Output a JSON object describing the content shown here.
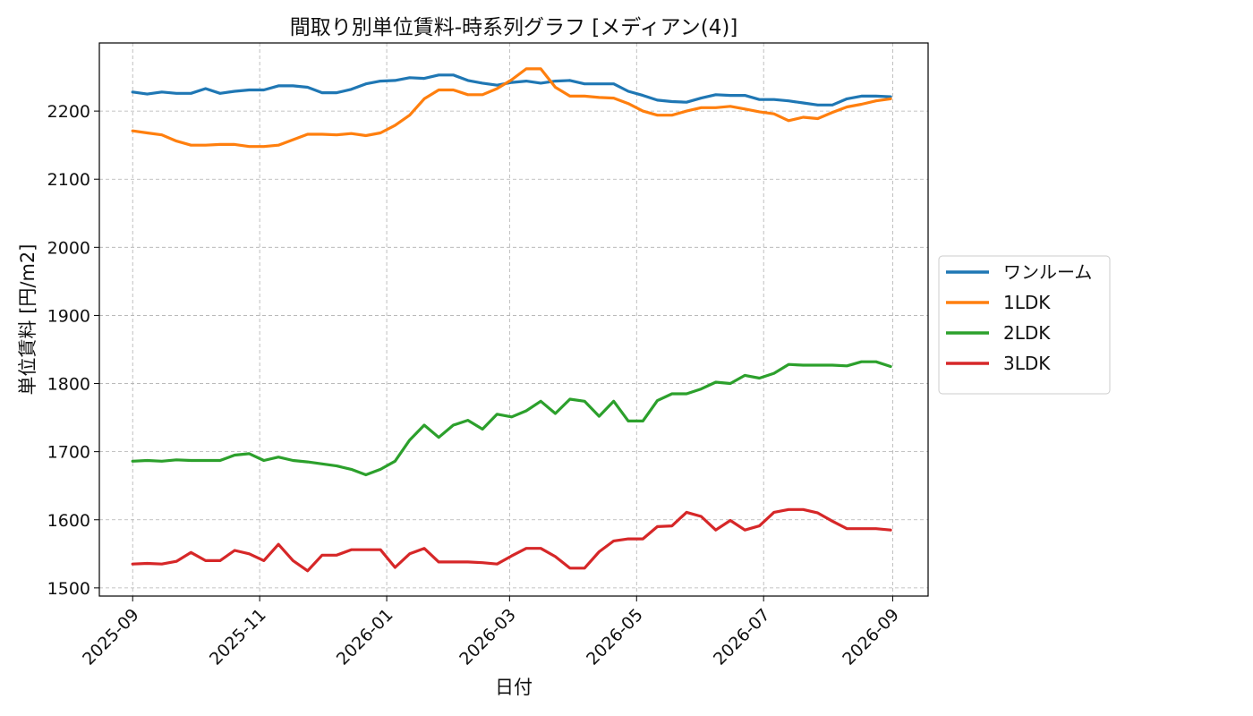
{
  "chart_data": {
    "type": "line",
    "title": "間取り別単位賃料-時系列グラフ [メディアン(4)]",
    "xlabel": "日付",
    "ylabel": "単位賃料 [円/m2]",
    "x_ticks": [
      "2025-09",
      "2025-11",
      "2026-01",
      "2026-03",
      "2026-05",
      "2026-07",
      "2026-09"
    ],
    "y_ticks": [
      "1500",
      "1600",
      "1700",
      "1800",
      "1900",
      "2000",
      "2100",
      "2200"
    ],
    "xlim": [
      "2025-08-16",
      "2026-09-18"
    ],
    "ylim": [
      1488,
      2300
    ],
    "grid": true,
    "legend_position": "right",
    "x": [
      "2025-09-01",
      "2025-09-08",
      "2025-09-15",
      "2025-09-22",
      "2025-09-29",
      "2025-10-06",
      "2025-10-13",
      "2025-10-20",
      "2025-10-27",
      "2025-11-03",
      "2025-11-10",
      "2025-11-17",
      "2025-11-24",
      "2025-12-01",
      "2025-12-08",
      "2025-12-15",
      "2025-12-22",
      "2025-12-29",
      "2026-01-05",
      "2026-01-12",
      "2026-01-19",
      "2026-01-26",
      "2026-02-02",
      "2026-02-09",
      "2026-02-16",
      "2026-02-23",
      "2026-03-02",
      "2026-03-09",
      "2026-03-16",
      "2026-03-23",
      "2026-03-30",
      "2026-04-06",
      "2026-04-13",
      "2026-04-20",
      "2026-04-27",
      "2026-05-04",
      "2026-05-11",
      "2026-05-18",
      "2026-05-25",
      "2026-06-01",
      "2026-06-08",
      "2026-06-15",
      "2026-06-22",
      "2026-06-29",
      "2026-07-06",
      "2026-07-13",
      "2026-07-20",
      "2026-07-27",
      "2026-08-03",
      "2026-08-10",
      "2026-08-17",
      "2026-08-24",
      "2026-08-31"
    ],
    "series": [
      {
        "name": "ワンルーム",
        "color": "#1f77b4",
        "values": [
          2228,
          2225,
          2228,
          2226,
          2226,
          2233,
          2226,
          2229,
          2231,
          2231,
          2237,
          2237,
          2235,
          2227,
          2227,
          2232,
          2240,
          2244,
          2245,
          2249,
          2248,
          2253,
          2253,
          2245,
          2241,
          2238,
          2242,
          2244,
          2241,
          2244,
          2245,
          2240,
          2240,
          2240,
          2229,
          2223,
          2216,
          2214,
          2213,
          2219,
          2224,
          2223,
          2223,
          2217,
          2217,
          2215,
          2212,
          2209,
          2209,
          2218,
          2222,
          2222,
          2221
        ]
      },
      {
        "name": "1LDK",
        "color": "#ff7f0e",
        "values": [
          2171,
          2168,
          2165,
          2156,
          2150,
          2150,
          2151,
          2151,
          2148,
          2148,
          2150,
          2158,
          2166,
          2166,
          2165,
          2167,
          2164,
          2168,
          2179,
          2194,
          2218,
          2231,
          2231,
          2224,
          2224,
          2233,
          2246,
          2262,
          2262,
          2235,
          2222,
          2222,
          2220,
          2219,
          2211,
          2200,
          2194,
          2194,
          2200,
          2205,
          2205,
          2207,
          2203,
          2199,
          2196,
          2186,
          2191,
          2189,
          2198,
          2206,
          2210,
          2215,
          2218
        ]
      },
      {
        "name": "2LDK",
        "color": "#2ca02c",
        "values": [
          1686,
          1687,
          1686,
          1688,
          1687,
          1687,
          1687,
          1695,
          1697,
          1687,
          1692,
          1687,
          1685,
          1682,
          1679,
          1674,
          1666,
          1674,
          1686,
          1717,
          1739,
          1721,
          1739,
          1746,
          1733,
          1755,
          1751,
          1760,
          1774,
          1756,
          1777,
          1774,
          1752,
          1774,
          1745,
          1745,
          1775,
          1785,
          1785,
          1792,
          1802,
          1800,
          1812,
          1808,
          1815,
          1828,
          1827,
          1827,
          1827,
          1826,
          1832,
          1832,
          1825
        ]
      },
      {
        "name": "3LDK",
        "color": "#d62728",
        "values": [
          1535,
          1536,
          1535,
          1539,
          1552,
          1540,
          1540,
          1555,
          1550,
          1540,
          1564,
          1540,
          1525,
          1548,
          1548,
          1556,
          1556,
          1556,
          1530,
          1550,
          1558,
          1538,
          1538,
          1538,
          1537,
          1535,
          1547,
          1558,
          1558,
          1546,
          1529,
          1529,
          1553,
          1569,
          1572,
          1572,
          1590,
          1591,
          1611,
          1605,
          1585,
          1599,
          1585,
          1591,
          1611,
          1615,
          1615,
          1610,
          1598,
          1587,
          1587,
          1587,
          1585
        ]
      }
    ]
  }
}
